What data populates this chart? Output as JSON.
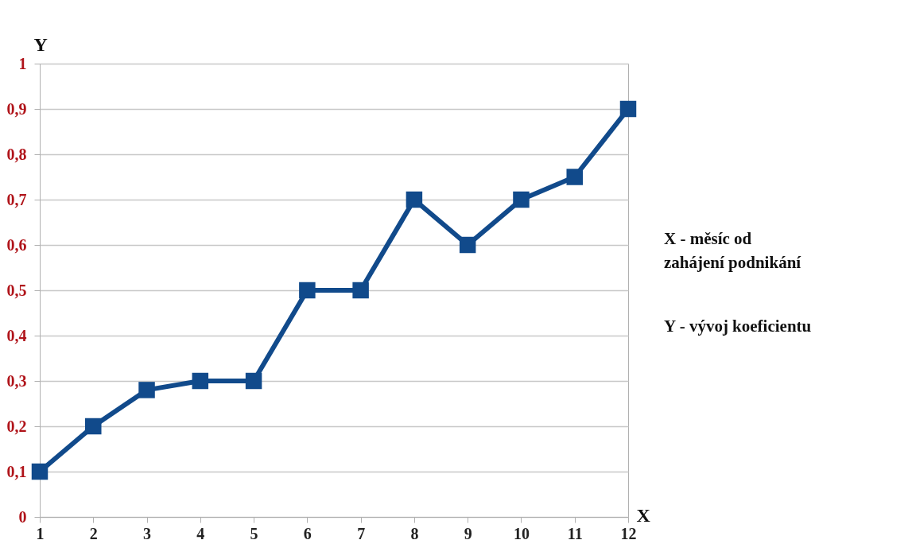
{
  "chart_data": {
    "type": "line",
    "xlabel": "X",
    "ylabel": "Y",
    "x": [
      1,
      2,
      3,
      4,
      5,
      6,
      7,
      8,
      9,
      10,
      11,
      12
    ],
    "series": [
      {
        "color": "#114a8b",
        "values": [
          0.1,
          0.2,
          0.28,
          0.3,
          0.3,
          0.5,
          0.5,
          0.7,
          0.6,
          0.7,
          0.75,
          0.9
        ]
      }
    ],
    "xlim": [
      1,
      12
    ],
    "xticks": [
      1,
      2,
      3,
      4,
      5,
      6,
      7,
      8,
      9,
      10,
      11,
      12
    ],
    "ylim": [
      0,
      1
    ],
    "yticks": [
      {
        "value": 0,
        "label": "0"
      },
      {
        "value": 0.1,
        "label": "0,1"
      },
      {
        "value": 0.2,
        "label": "0,2"
      },
      {
        "value": 0.3,
        "label": "0,3"
      },
      {
        "value": 0.4,
        "label": "0,4"
      },
      {
        "value": 0.5,
        "label": "0,5"
      },
      {
        "value": 0.6,
        "label": "0,6"
      },
      {
        "value": 0.7,
        "label": "0,7"
      },
      {
        "value": 0.8,
        "label": "0,8"
      },
      {
        "value": 0.9,
        "label": "0,9"
      },
      {
        "value": 1,
        "label": "1"
      }
    ],
    "grid": "y",
    "marker": "square",
    "line_style": "solid",
    "annotations": [
      "X - měsíc od\nzahájení podnikání",
      "Y - vývoj koeficientu"
    ]
  }
}
